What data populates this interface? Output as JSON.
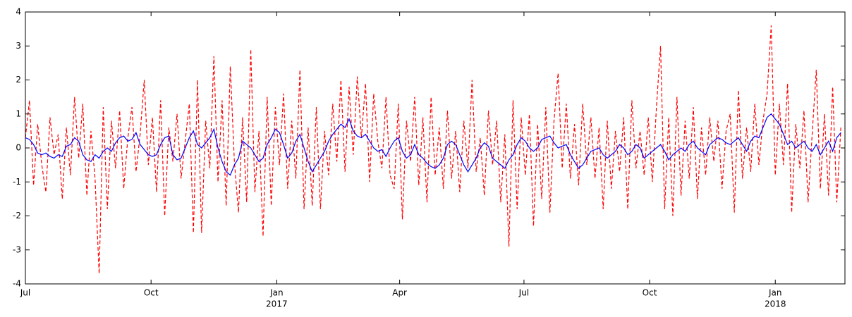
{
  "chart_data": {
    "type": "line",
    "xlim": [
      0,
      200
    ],
    "xticks": [
      {
        "value": 0,
        "label": "Jul"
      },
      {
        "value": 30.67,
        "label": "Oct"
      },
      {
        "value": 61.33,
        "label": "Jan",
        "year": "2017"
      },
      {
        "value": 91.33,
        "label": "Apr"
      },
      {
        "value": 121.67,
        "label": "Jul"
      },
      {
        "value": 152.33,
        "label": "Oct"
      },
      {
        "value": 183,
        "label": "Jan",
        "year": "2018"
      }
    ],
    "ylim": [
      -4,
      4
    ],
    "yticks": [
      -4,
      -3,
      -2,
      -1,
      0,
      1,
      2,
      3,
      4
    ],
    "grid": false,
    "series": [
      {
        "color": "#ff0000",
        "linestyle": "dashed",
        "values": [
          0.3,
          1.4,
          -1.1,
          0.7,
          -0.5,
          -1.3,
          0.9,
          -0.2,
          0.4,
          -1.5,
          0.6,
          -0.8,
          1.5,
          -0.3,
          1.3,
          -1.4,
          0.5,
          -0.9,
          -3.7,
          1.2,
          -1.8,
          0.8,
          -0.6,
          1.1,
          -1.2,
          0.3,
          1.2,
          -0.7,
          0.4,
          2.0,
          -0.5,
          0.9,
          -1.3,
          1.4,
          -2.0,
          0.6,
          -0.4,
          1.0,
          -0.9,
          0.2,
          1.3,
          -2.5,
          2.0,
          -2.5,
          0.8,
          -0.6,
          2.7,
          -1.0,
          1.4,
          -1.7,
          2.4,
          -0.4,
          -1.9,
          0.9,
          -1.6,
          2.9,
          -1.3,
          0.5,
          -2.6,
          1.5,
          -1.7,
          1.2,
          -0.5,
          1.6,
          -1.2,
          0.8,
          -0.9,
          2.3,
          -1.8,
          0.6,
          -1.7,
          1.2,
          -1.8,
          0.5,
          -0.8,
          1.3,
          -0.4,
          2.0,
          -0.7,
          1.8,
          -0.2,
          2.1,
          0.3,
          1.9,
          -1.0,
          1.6,
          0.2,
          -0.6,
          1.5,
          -0.8,
          -1.2,
          1.3,
          -2.1,
          0.8,
          -0.4,
          1.5,
          -1.1,
          0.9,
          -1.6,
          1.5,
          -0.8,
          0.6,
          -1.2,
          1.1,
          -0.9,
          0.5,
          -1.3,
          0.8,
          -0.6,
          2.0,
          -0.7,
          0.3,
          -1.4,
          1.1,
          -0.5,
          0.8,
          -1.6,
          0.4,
          -2.9,
          1.4,
          -1.8,
          0.9,
          -0.8,
          1.0,
          -2.3,
          0.7,
          -1.5,
          1.2,
          -1.9,
          0.8,
          2.2,
          -0.6,
          1.3,
          -0.9,
          0.7,
          -1.1,
          1.3,
          -0.5,
          0.9,
          -0.9,
          0.6,
          -1.8,
          0.8,
          -1.2,
          0.5,
          -0.7,
          0.9,
          -1.8,
          1.4,
          -0.6,
          0.5,
          -0.8,
          0.9,
          -1.0,
          1.2,
          3.0,
          -1.8,
          0.9,
          -2.0,
          1.5,
          -1.4,
          0.8,
          -0.9,
          1.2,
          -1.5,
          0.6,
          -0.8,
          0.9,
          -0.4,
          0.8,
          -1.2,
          0.5,
          1.0,
          -1.9,
          1.7,
          -0.9,
          0.6,
          -0.7,
          1.3,
          -0.5,
          0.8,
          1.6,
          3.6,
          -0.8,
          1.3,
          -0.5,
          1.9,
          -1.9,
          0.7,
          -0.6,
          1.1,
          -1.6,
          0.4,
          2.3,
          -1.2,
          1.0,
          -1.4,
          1.8,
          -1.6,
          0.6
        ]
      },
      {
        "color": "#0000ff",
        "linestyle": "solid",
        "values": [
          0.3,
          0.25,
          0.1,
          -0.15,
          -0.2,
          -0.15,
          -0.25,
          -0.3,
          -0.2,
          -0.25,
          0.05,
          0.1,
          0.3,
          0.2,
          -0.2,
          -0.35,
          -0.4,
          -0.2,
          -0.3,
          -0.1,
          0.0,
          -0.1,
          0.15,
          0.3,
          0.35,
          0.2,
          0.25,
          0.45,
          0.1,
          -0.05,
          -0.2,
          -0.25,
          -0.2,
          0.1,
          0.3,
          0.35,
          -0.2,
          -0.35,
          -0.3,
          0.0,
          0.3,
          0.5,
          0.1,
          0.0,
          0.15,
          0.3,
          0.55,
          0.0,
          -0.4,
          -0.7,
          -0.8,
          -0.5,
          -0.3,
          0.2,
          0.1,
          0.0,
          -0.2,
          -0.4,
          -0.3,
          0.1,
          0.3,
          0.55,
          0.45,
          0.1,
          -0.3,
          -0.15,
          0.2,
          0.4,
          0.0,
          -0.4,
          -0.7,
          -0.5,
          -0.3,
          -0.1,
          0.2,
          0.4,
          0.55,
          0.7,
          0.6,
          0.85,
          0.5,
          0.35,
          0.3,
          0.4,
          0.2,
          0.0,
          -0.1,
          -0.05,
          -0.25,
          0.0,
          0.2,
          0.3,
          -0.1,
          -0.3,
          -0.2,
          0.1,
          -0.2,
          -0.3,
          -0.45,
          -0.55,
          -0.6,
          -0.5,
          -0.3,
          0.1,
          0.2,
          0.1,
          -0.2,
          -0.5,
          -0.7,
          -0.5,
          -0.3,
          0.0,
          0.15,
          0.05,
          -0.3,
          -0.4,
          -0.5,
          -0.6,
          -0.35,
          -0.2,
          0.1,
          0.3,
          0.2,
          0.0,
          -0.1,
          0.0,
          0.25,
          0.3,
          0.35,
          0.15,
          0.0,
          0.05,
          0.1,
          -0.2,
          -0.4,
          -0.6,
          -0.5,
          -0.3,
          -0.1,
          -0.05,
          0.0,
          -0.2,
          -0.3,
          -0.2,
          -0.1,
          0.1,
          0.0,
          -0.2,
          -0.1,
          0.1,
          0.0,
          -0.3,
          -0.2,
          -0.1,
          0.0,
          0.1,
          -0.1,
          -0.35,
          -0.2,
          -0.1,
          0.0,
          -0.1,
          0.1,
          0.2,
          0.0,
          -0.1,
          -0.2,
          0.1,
          0.2,
          0.3,
          0.25,
          0.15,
          0.1,
          0.2,
          0.3,
          0.1,
          -0.1,
          0.2,
          0.35,
          0.3,
          0.6,
          0.9,
          1.0,
          0.85,
          0.7,
          0.4,
          0.1,
          0.2,
          0.0,
          0.1,
          0.2,
          0.0,
          -0.1,
          0.1,
          -0.2,
          0.0,
          0.2,
          -0.1,
          0.3,
          0.45
        ]
      }
    ]
  }
}
